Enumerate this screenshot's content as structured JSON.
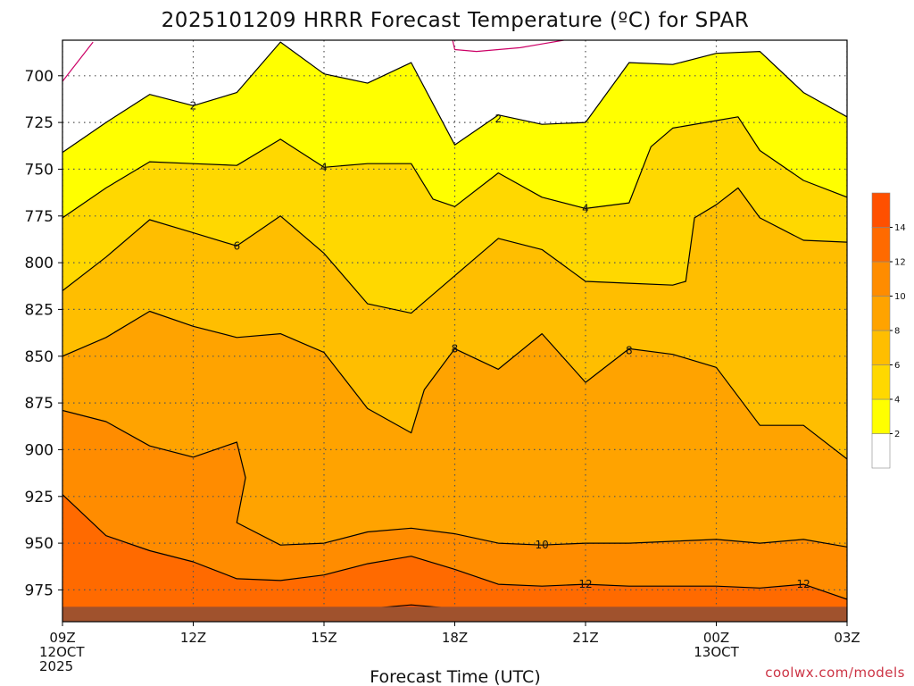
{
  "title": "2025101209 HRRR Forecast Temperature (ºC) for SPAR",
  "credit": "coolwx.com/models",
  "chart_data": {
    "type": "contour",
    "title": "2025101209 HRRR Forecast Temperature (ºC) for SPAR",
    "xlabel": "Forecast Time (UTC)",
    "ylabel": "",
    "x_range_hours": [
      0,
      18
    ],
    "y_range_hpa": [
      681,
      992
    ],
    "y_axis_inverted": true,
    "grid": true,
    "x_ticks": [
      {
        "hour": 0,
        "lines": [
          "09Z",
          "12OCT",
          "2025"
        ]
      },
      {
        "hour": 3,
        "lines": [
          "12Z"
        ]
      },
      {
        "hour": 6,
        "lines": [
          "15Z"
        ]
      },
      {
        "hour": 9,
        "lines": [
          "18Z"
        ]
      },
      {
        "hour": 12,
        "lines": [
          "21Z"
        ]
      },
      {
        "hour": 15,
        "lines": [
          "00Z",
          "13OCT"
        ]
      },
      {
        "hour": 18,
        "lines": [
          "03Z"
        ]
      }
    ],
    "y_ticks": [
      "700",
      "725",
      "750",
      "775",
      "800",
      "825",
      "850",
      "875",
      "900",
      "925",
      "950",
      "975"
    ],
    "contour_levels": [
      0,
      2,
      4,
      6,
      8,
      10,
      12,
      14
    ],
    "contour_labels": [
      {
        "text": "2",
        "hour": 3.0,
        "hpa": 716
      },
      {
        "text": "2",
        "hour": 10.0,
        "hpa": 723
      },
      {
        "text": "4",
        "hour": 6.0,
        "hpa": 749
      },
      {
        "text": "4",
        "hour": 12.0,
        "hpa": 771
      },
      {
        "text": "6",
        "hour": 4.0,
        "hpa": 791
      },
      {
        "text": "8",
        "hour": 9.0,
        "hpa": 846
      },
      {
        "text": "8",
        "hour": 13.0,
        "hpa": 847
      },
      {
        "text": "10",
        "hour": 11.0,
        "hpa": 951
      },
      {
        "text": "12",
        "hour": 12.0,
        "hpa": 972
      },
      {
        "text": "12",
        "hour": 17.0,
        "hpa": 972
      }
    ],
    "contours": [
      {
        "level": 0,
        "segments": [
          [
            [
              0.0,
              703
            ],
            [
              0.2,
              697
            ],
            [
              0.5,
              688
            ],
            [
              0.7,
              682
            ]
          ],
          [
            [
              8.95,
              681
            ],
            [
              9.0,
              686
            ],
            [
              9.5,
              687
            ],
            [
              10.0,
              686
            ],
            [
              10.5,
              685
            ],
            [
              11.0,
              683
            ],
            [
              11.5,
              681
            ]
          ]
        ]
      },
      {
        "level": 2,
        "segments": [
          [
            [
              0,
              741
            ],
            [
              1,
              725
            ],
            [
              2,
              710
            ],
            [
              3,
              716
            ],
            [
              4,
              709
            ],
            [
              5,
              682
            ],
            [
              6,
              699
            ],
            [
              7,
              704
            ],
            [
              8,
              693
            ],
            [
              9,
              737
            ],
            [
              10,
              721
            ],
            [
              11,
              726
            ],
            [
              12,
              725
            ],
            [
              13,
              693
            ],
            [
              14,
              694
            ],
            [
              15,
              688
            ],
            [
              16,
              687
            ],
            [
              17,
              709
            ],
            [
              18,
              722
            ]
          ]
        ]
      },
      {
        "level": 4,
        "segments": [
          [
            [
              0,
              776
            ],
            [
              1,
              760
            ],
            [
              2,
              746
            ],
            [
              3,
              747
            ],
            [
              4,
              748
            ],
            [
              5,
              734
            ],
            [
              6,
              749
            ],
            [
              7,
              747
            ],
            [
              8,
              747
            ],
            [
              8.5,
              766
            ],
            [
              9,
              770
            ],
            [
              10,
              752
            ],
            [
              11,
              765
            ],
            [
              12,
              771
            ],
            [
              13,
              768
            ],
            [
              13.5,
              738
            ],
            [
              14,
              728
            ],
            [
              15,
              724
            ],
            [
              15.5,
              722
            ],
            [
              16,
              740
            ],
            [
              17,
              756
            ],
            [
              18,
              765
            ]
          ]
        ]
      },
      {
        "level": 6,
        "segments": [
          [
            [
              0,
              815
            ],
            [
              1,
              797
            ],
            [
              2,
              777
            ],
            [
              3,
              784
            ],
            [
              4,
              791
            ],
            [
              5,
              775
            ],
            [
              6,
              795
            ],
            [
              7,
              822
            ],
            [
              8,
              827
            ],
            [
              9,
              807
            ],
            [
              10,
              787
            ],
            [
              11,
              793
            ],
            [
              12,
              810
            ],
            [
              13,
              811
            ],
            [
              14,
              812
            ],
            [
              14.3,
              810
            ],
            [
              14.5,
              776
            ],
            [
              15,
              769
            ],
            [
              15.5,
              760
            ],
            [
              16,
              776
            ],
            [
              17,
              788
            ],
            [
              18,
              789
            ]
          ]
        ]
      },
      {
        "level": 8,
        "segments": [
          [
            [
              0,
              850
            ],
            [
              1,
              840
            ],
            [
              2,
              826
            ],
            [
              3,
              834
            ],
            [
              4,
              840
            ],
            [
              5,
              838
            ],
            [
              6,
              848
            ],
            [
              7,
              878
            ],
            [
              8,
              891
            ],
            [
              8.3,
              868
            ],
            [
              9,
              846
            ],
            [
              10,
              857
            ],
            [
              11,
              838
            ],
            [
              12,
              864
            ],
            [
              13,
              846
            ],
            [
              14,
              849
            ],
            [
              15,
              856
            ],
            [
              16,
              887
            ],
            [
              17,
              887
            ],
            [
              18,
              905
            ]
          ]
        ]
      },
      {
        "level": 10,
        "segments": [
          [
            [
              0,
              879
            ],
            [
              1,
              885
            ],
            [
              2,
              898
            ],
            [
              3,
              904
            ],
            [
              3.5,
              900
            ],
            [
              4,
              896
            ],
            [
              4.2,
              915
            ],
            [
              4.0,
              939
            ],
            [
              5,
              951
            ],
            [
              6,
              950
            ],
            [
              7,
              944
            ],
            [
              8,
              942
            ],
            [
              9,
              945
            ],
            [
              10,
              950
            ],
            [
              11,
              951
            ],
            [
              12,
              950
            ],
            [
              13,
              950
            ],
            [
              14,
              949
            ],
            [
              15,
              948
            ],
            [
              16,
              950
            ],
            [
              17,
              948
            ],
            [
              18,
              952
            ]
          ]
        ]
      },
      {
        "level": 12,
        "segments": [
          [
            [
              0,
              924
            ],
            [
              1,
              946
            ],
            [
              2,
              954
            ],
            [
              3,
              960
            ],
            [
              4,
              969
            ],
            [
              5,
              970
            ],
            [
              6,
              967
            ],
            [
              7,
              961
            ],
            [
              8,
              957
            ],
            [
              9,
              964
            ],
            [
              10,
              972
            ],
            [
              11,
              973
            ],
            [
              12,
              972
            ],
            [
              13,
              973
            ],
            [
              14,
              973
            ],
            [
              15,
              973
            ],
            [
              16,
              974
            ],
            [
              17,
              972
            ],
            [
              18,
              980
            ]
          ]
        ]
      },
      {
        "level": 14,
        "segments": [
          [
            [
              6,
              987
            ],
            [
              7,
              985
            ],
            [
              7.5,
              984
            ],
            [
              8,
              983
            ],
            [
              8.5,
              984
            ],
            [
              9,
              985
            ]
          ]
        ]
      }
    ],
    "terrain_from_hpa": 984,
    "colors": {
      "lt0": "#ffffff",
      "0-2": "#ffffff",
      "2-4": "#ffff00",
      "4-6": "#ffd800",
      "6-8": "#ffbe00",
      "8-10": "#ffa300",
      "10-12": "#ff8c00",
      "12-14": "#ff6a00",
      "14-16": "#ff5000",
      "terrain": "#a0522d",
      "contour_0": "#cc0066",
      "contour": "#000000",
      "grid": "#555555"
    },
    "colorbar": {
      "labels": [
        "2",
        "4",
        "6",
        "8",
        "10",
        "12",
        "14"
      ],
      "levels": [
        0,
        2,
        4,
        6,
        8,
        10,
        12,
        14,
        16
      ]
    }
  }
}
